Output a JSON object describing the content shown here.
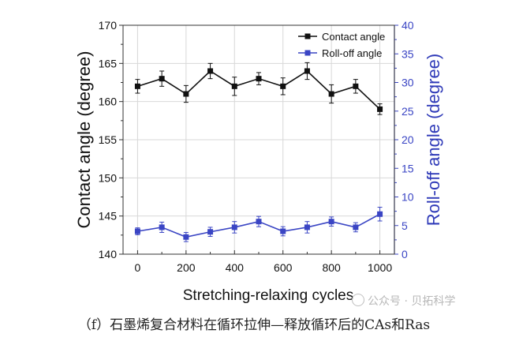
{
  "chart_data": {
    "type": "line",
    "xlabel": "Stretching-relaxing cycles",
    "ylabel": "Contact angle (degree)",
    "y2label": "Roll-off angle (degree)",
    "xlim": [
      -60,
      1060
    ],
    "ylim": [
      140,
      170
    ],
    "y2lim": [
      0,
      40
    ],
    "xticks": [
      0,
      200,
      400,
      600,
      800,
      1000
    ],
    "yticks": [
      140,
      145,
      150,
      155,
      160,
      165,
      170
    ],
    "y2ticks": [
      0,
      5,
      10,
      15,
      20,
      25,
      30,
      35,
      40
    ],
    "x": [
      0,
      100,
      200,
      300,
      400,
      500,
      600,
      700,
      800,
      900,
      1000
    ],
    "legend_position": "top-right",
    "series": [
      {
        "name": "Contact angle",
        "axis": "left",
        "color": "#111111",
        "values": [
          162,
          163,
          161,
          164,
          162,
          163,
          162,
          164,
          161,
          162,
          159
        ],
        "errors": [
          0.9,
          1.0,
          1.1,
          1.0,
          1.2,
          0.8,
          1.1,
          1.1,
          1.2,
          0.9,
          0.7
        ]
      },
      {
        "name": "Roll-off angle",
        "axis": "right",
        "color": "#3a45c4",
        "values": [
          4.0,
          4.7,
          3.0,
          3.9,
          4.7,
          5.7,
          4.0,
          4.7,
          5.7,
          4.7,
          7.0
        ],
        "errors": [
          0.6,
          0.9,
          0.8,
          0.8,
          1.0,
          0.9,
          0.8,
          1.0,
          0.8,
          0.8,
          1.2
        ]
      }
    ]
  },
  "watermark": "公众号 · 贝拓科学",
  "caption": "（f）石墨烯复合材料在循环拉伸—释放循环后的CAs和Ras"
}
